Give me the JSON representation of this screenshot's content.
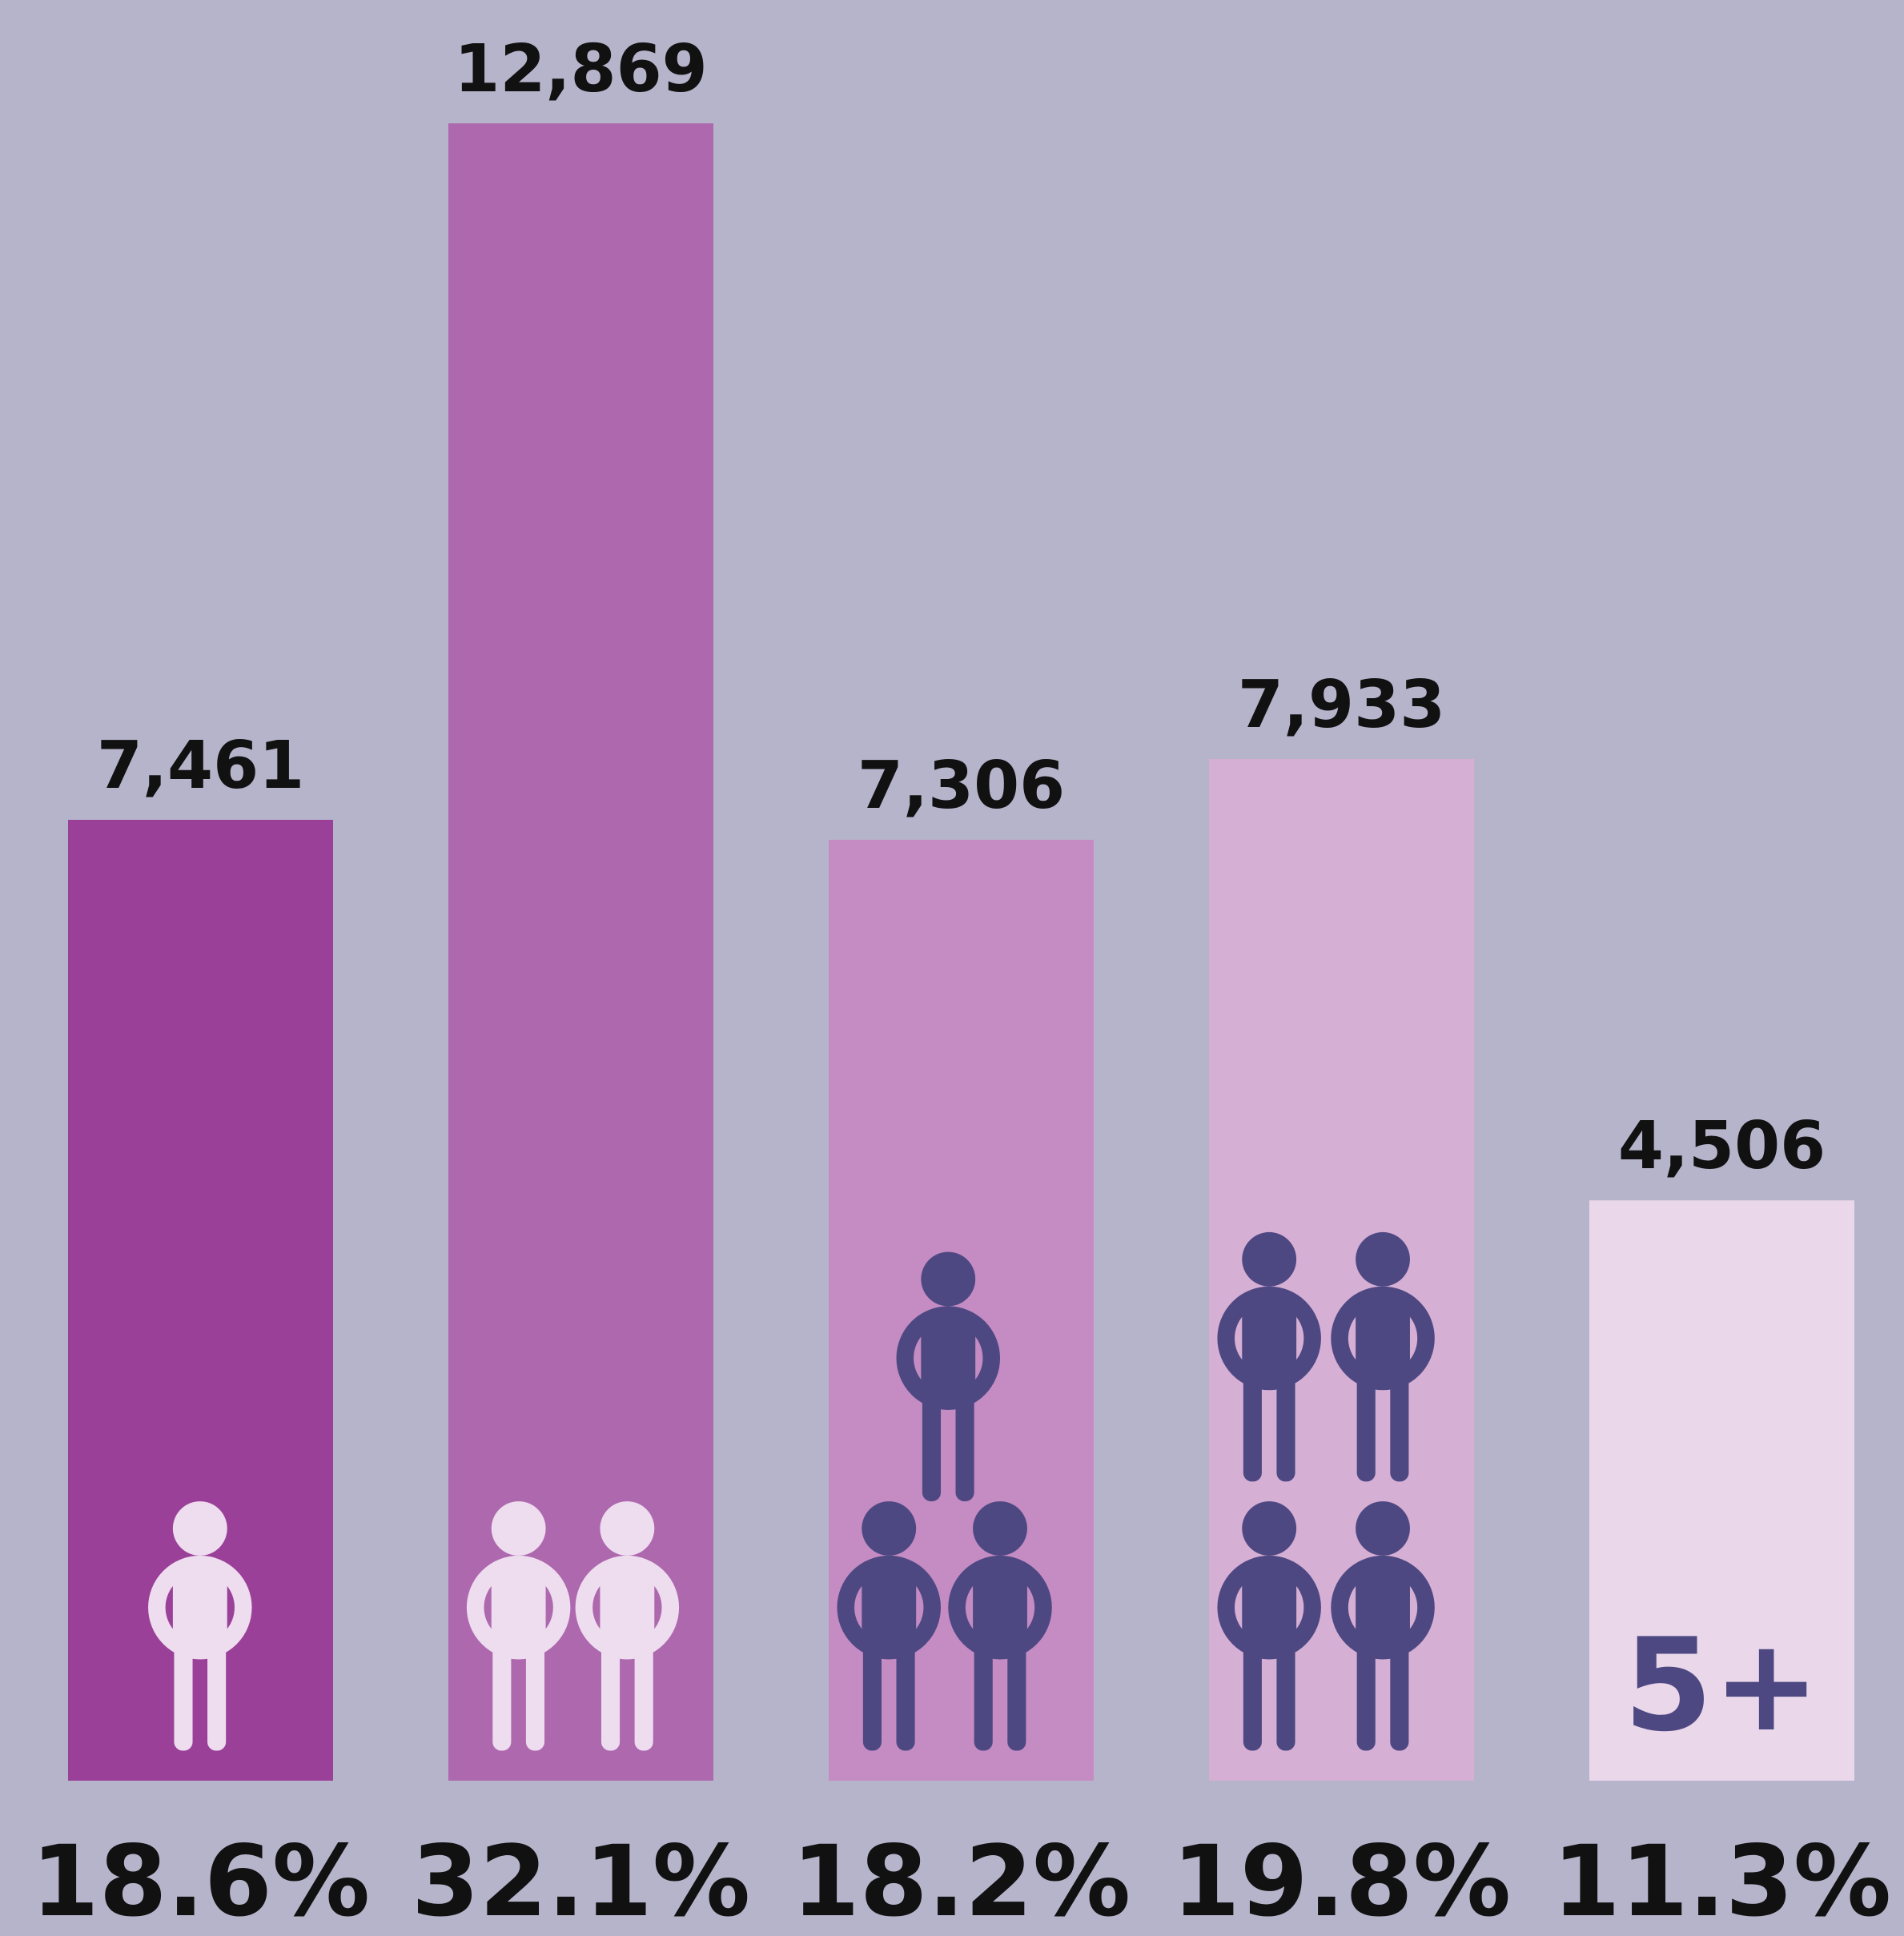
{
  "chart_data": {
    "type": "bar",
    "categories": [
      null,
      null,
      null,
      null,
      "5+"
    ],
    "values": [
      7461,
      12869,
      7306,
      7933,
      4506
    ],
    "value_labels": [
      "7,461",
      "12,869",
      "7,306",
      "7,933",
      "4,506"
    ],
    "percentages": [
      18.6,
      32.1,
      18.2,
      19.8,
      11.3
    ],
    "percentage_labels": [
      "18.6%",
      "32.1%",
      "18.2%",
      "19.8%",
      "11.3%"
    ],
    "colors": [
      "#9a4098",
      "#ad68ae",
      "#c48cc2",
      "#d6afd4",
      "#ead7ea"
    ],
    "ylim": [
      0,
      13000
    ]
  }
}
